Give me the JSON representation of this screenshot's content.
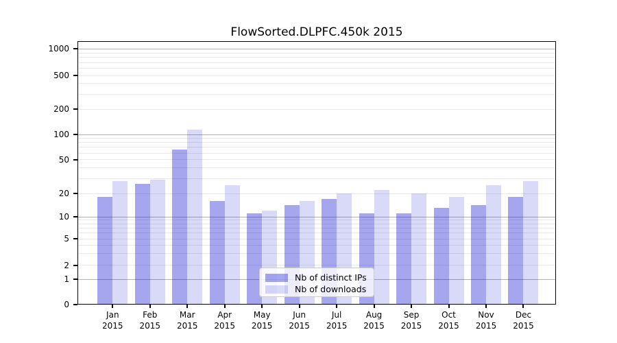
{
  "chart_data": {
    "type": "bar",
    "title": "FlowSorted.DLPFC.450k 2015",
    "categories": [
      "Jan",
      "Feb",
      "Mar",
      "Apr",
      "May",
      "Jun",
      "Jul",
      "Aug",
      "Sep",
      "Oct",
      "Nov",
      "Dec"
    ],
    "year_label": "2015",
    "series": [
      {
        "name": "Nb of distinct IPs",
        "base_color": "#0000CD",
        "alpha": 0.35,
        "fill_hex": "#A8A8EC",
        "values": [
          18,
          26,
          66,
          16,
          11,
          14,
          17,
          11,
          11,
          13,
          14,
          18
        ]
      },
      {
        "name": "Nb of downloads",
        "base_color": "#0000CD",
        "alpha": 0.15,
        "fill_hex": "#D8D8F7",
        "values": [
          28,
          29,
          115,
          25,
          12,
          16,
          20,
          22,
          20,
          18,
          25,
          28
        ]
      }
    ],
    "yticks": [
      "0",
      "1",
      "2",
      "5",
      "10",
      "20",
      "50",
      "100",
      "200",
      "500",
      "1000"
    ],
    "ytick_values": [
      0,
      1,
      2,
      5,
      10,
      20,
      50,
      100,
      200,
      500,
      1000
    ],
    "yscale": "asinh-log",
    "ylim": [
      0,
      1400
    ],
    "grid": true,
    "legend_position": "lower center",
    "grid_major_color": "#B1B1B1",
    "grid_minor_color": "#E8E8E8"
  }
}
